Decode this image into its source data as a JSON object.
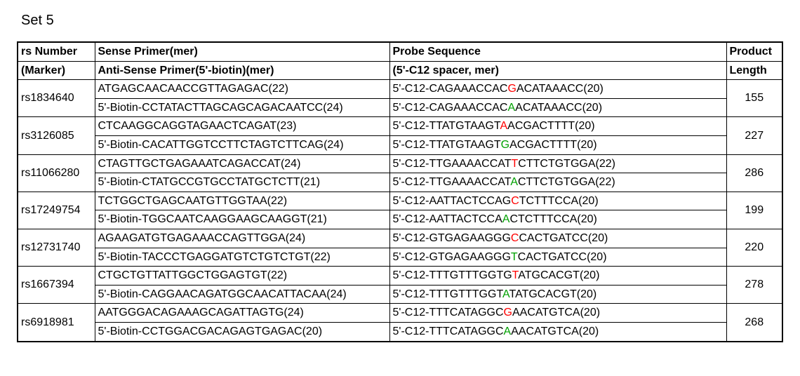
{
  "title": "Set 5",
  "headers": {
    "rs": [
      "rs Number",
      "(Marker)"
    ],
    "primer": [
      "Sense Primer(mer)",
      "Anti-Sense Primer(5'-biotin)(mer)"
    ],
    "probe": [
      "Probe Sequence",
      "(5'-C12 spacer, mer)"
    ],
    "len": [
      "Product",
      "Length"
    ]
  },
  "highlight_colors": {
    "sense": "#ff0000",
    "anti": "#00a000"
  },
  "rows": [
    {
      "rs": "rs1834640",
      "sense_primer": "ATGAGCAACAACCGTTAGAGAC(22)",
      "anti_primer": "5'-Biotin-CCTATACTTAGCAGCAGACAATCC(24)",
      "probe_sense_pre": "5'-C12-CAGAAACCAC",
      "probe_sense_hl": "G",
      "probe_sense_post": "ACATAAACC(20)",
      "probe_anti_pre": "5'-C12-CAGAAACCAC",
      "probe_anti_hl": "A",
      "probe_anti_post": "ACATAAACC(20)",
      "length": "155"
    },
    {
      "rs": "rs3126085",
      "sense_primer": "CTCAAGGCAGGTAGAACTCAGAT(23)",
      "anti_primer": "5'-Biotin-CACATTGGTCCTTCTAGTCTTCAG(24)",
      "probe_sense_pre": "5'-C12-TTATGTAAGT",
      "probe_sense_hl": "A",
      "probe_sense_post": "ACGACTTTT(20)",
      "probe_anti_pre": "5'-C12-TTATGTAAGT",
      "probe_anti_hl": "G",
      "probe_anti_post": "ACGACTTTT(20)",
      "length": "227"
    },
    {
      "rs": "rs11066280",
      "sense_primer": "CTAGTTGCTGAGAAATCAGACCAT(24)",
      "anti_primer": "5'-Biotin-CTATGCCGTGCCTATGCTCTT(21)",
      "probe_sense_pre": "5'-C12-TTGAAAACCAT",
      "probe_sense_hl": "T",
      "probe_sense_post": "CTTCTGTGGA(22)",
      "probe_anti_pre": "5'-C12-TTGAAAACCAT",
      "probe_anti_hl": "A",
      "probe_anti_post": "CTTCTGTGGA(22)",
      "length": "286"
    },
    {
      "rs": "rs17249754",
      "sense_primer": "TCTGGCTGAGCAATGTTGGTAA(22)",
      "anti_primer": "5'-Biotin-TGGCAATCAAGGAAGCAAGGT(21)",
      "probe_sense_pre": "5'-C12-AATTACTCCAG",
      "probe_sense_hl": "C",
      "probe_sense_post": "TCTTTCCA(20)",
      "probe_anti_pre": "5'-C12-AATTACTCCA",
      "probe_anti_hl": "A",
      "probe_anti_post": "CTCTTTCCA(20)",
      "length": "199"
    },
    {
      "rs": "rs12731740",
      "sense_primer": "AGAAGATGTGAGAAACCAGTTGGA(24)",
      "anti_primer": "5'-Biotin-TACCCTGAGGATGTCTGTCTGT(22)",
      "probe_sense_pre": "5'-C12-GTGAGAAGGG",
      "probe_sense_hl": "C",
      "probe_sense_post": "CACTGATCC(20)",
      "probe_anti_pre": "5'-C12-GTGAGAAGGG",
      "probe_anti_hl": "T",
      "probe_anti_post": "CACTGATCC(20)",
      "length": "220"
    },
    {
      "rs": "rs1667394",
      "sense_primer": "CTGCTGTTATTGGCTGGAGTGT(22)",
      "anti_primer": "5'-Biotin-CAGGAACAGATGGCAACATTACAA(24)",
      "probe_sense_pre": "5'-C12-TTTGTTTGGTG",
      "probe_sense_hl": "T",
      "probe_sense_post": "ATGCACGT(20)",
      "probe_anti_pre": "5'-C12-TTTGTTTGGT",
      "probe_anti_hl": "A",
      "probe_anti_post": "TATGCACGT(20)",
      "length": "278"
    },
    {
      "rs": "rs6918981",
      "sense_primer": "AATGGGACAGAAAGCAGATTAGTG(24)",
      "anti_primer": "5'-Biotin-CCTGGACGACAGAGTGAGAC(20)",
      "probe_sense_pre": "5'-C12-TTTCATAGGC",
      "probe_sense_hl": "G",
      "probe_sense_post": "AACATGTCA(20)",
      "probe_anti_pre": "5'-C12-TTTCATAGGC",
      "probe_anti_hl": "A",
      "probe_anti_post": "AACATGTCA(20)",
      "length": "268"
    }
  ]
}
